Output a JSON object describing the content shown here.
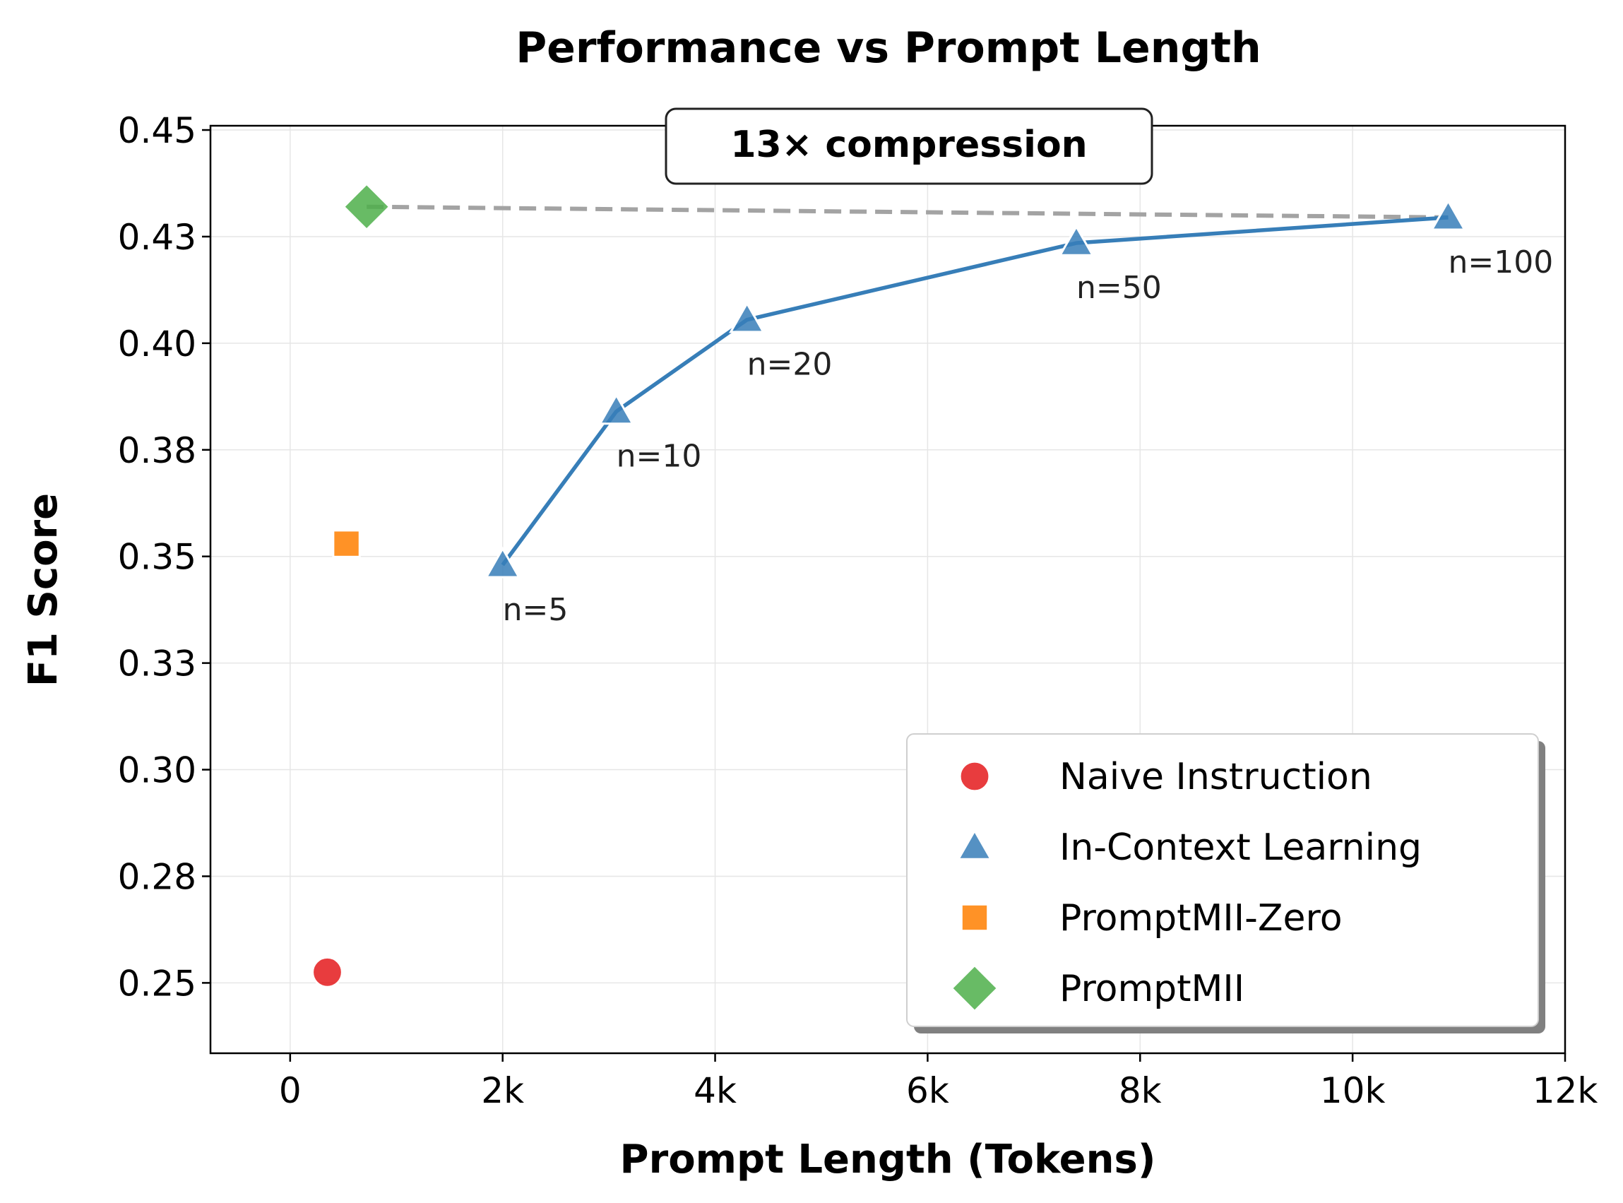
{
  "chart_data": {
    "type": "scatter",
    "title": "Performance vs Prompt Length",
    "xlabel": "Prompt Length (Tokens)",
    "ylabel": "F1 Score",
    "xlim": [
      -750,
      12000
    ],
    "ylim": [
      0.2335,
      0.451
    ],
    "xticks": [
      0,
      2000,
      4000,
      6000,
      8000,
      10000,
      12000
    ],
    "xtick_labels": [
      "0",
      "2k",
      "4k",
      "6k",
      "8k",
      "10k",
      "12k"
    ],
    "yticks": [
      0.25,
      0.275,
      0.3,
      0.325,
      0.35,
      0.375,
      0.4,
      0.425,
      0.45
    ],
    "ytick_labels": [
      "0.25",
      "0.28",
      "0.30",
      "0.33",
      "0.35",
      "0.38",
      "0.40",
      "0.43",
      "0.45"
    ],
    "grid": true,
    "legend_position": "bottom-right",
    "annotation": "13× compression",
    "series": [
      {
        "name": "Naive Instruction",
        "marker": "circle",
        "color": "#e41a1c",
        "points": [
          {
            "x": 350,
            "y": 0.2525
          }
        ]
      },
      {
        "name": "In-Context Learning",
        "marker": "triangle",
        "color": "#377eb8",
        "line": true,
        "points": [
          {
            "x": 2000,
            "y": 0.348,
            "label": "n=5"
          },
          {
            "x": 3070,
            "y": 0.384,
            "label": "n=10"
          },
          {
            "x": 4300,
            "y": 0.4055,
            "label": "n=20"
          },
          {
            "x": 7400,
            "y": 0.4235,
            "label": "n=50"
          },
          {
            "x": 10900,
            "y": 0.4295,
            "label": "n=100"
          }
        ]
      },
      {
        "name": "PromptMII-Zero",
        "marker": "square",
        "color": "#ff7f00",
        "points": [
          {
            "x": 530,
            "y": 0.353
          }
        ]
      },
      {
        "name": "PromptMII",
        "marker": "diamond",
        "color": "#4daf4a",
        "points": [
          {
            "x": 720,
            "y": 0.432
          }
        ]
      }
    ]
  }
}
